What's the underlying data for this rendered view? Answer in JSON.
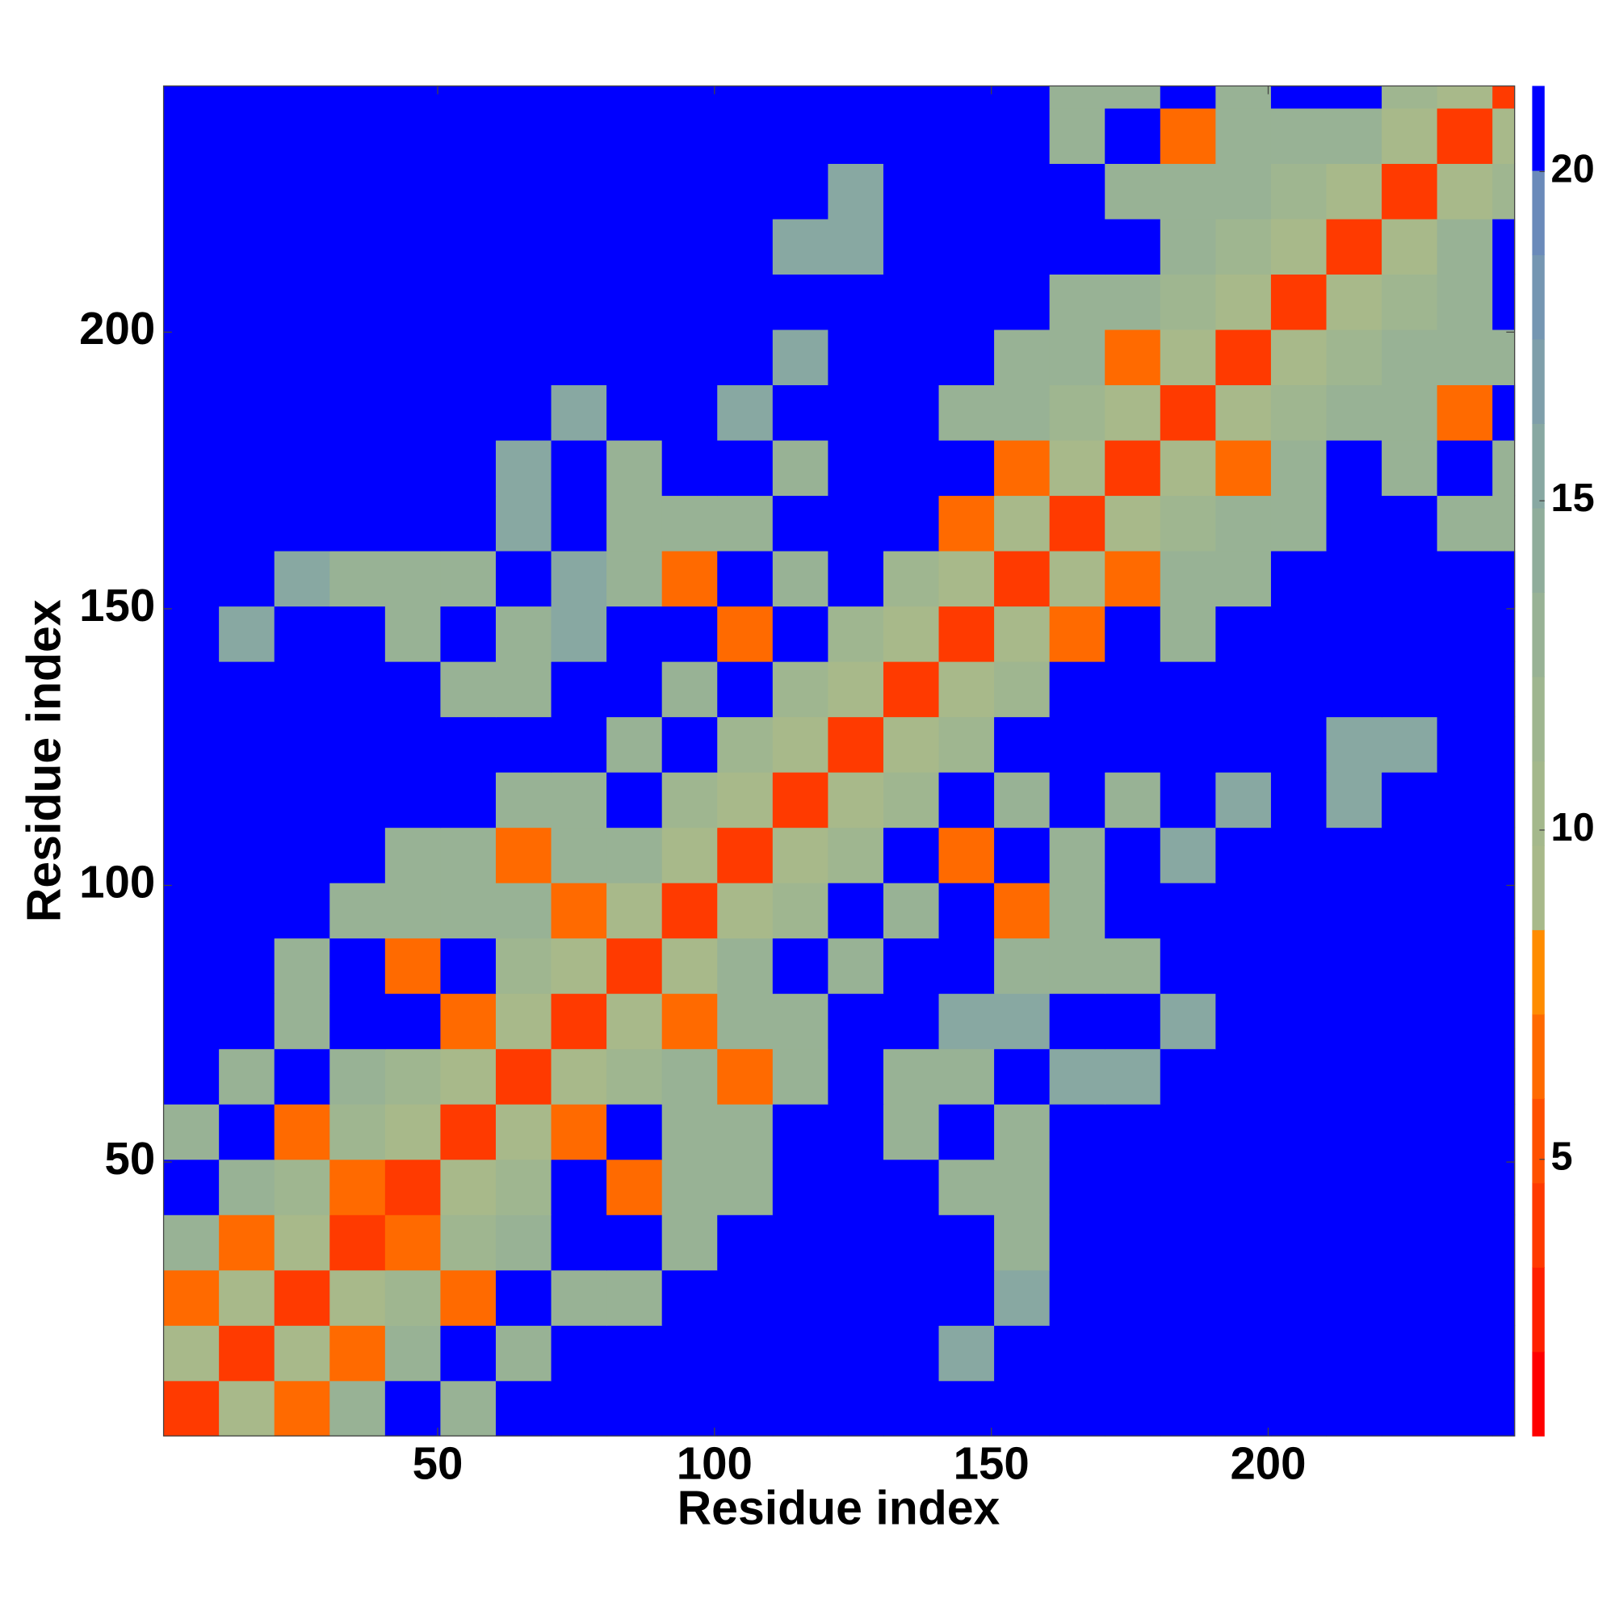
{
  "chart_data": {
    "type": "heatmap",
    "x_label": "Residue index",
    "y_label": "Residue index",
    "xlim": [
      0.5,
      244.5
    ],
    "ylim": [
      0.5,
      244.5
    ],
    "xticks": [
      50,
      100,
      150,
      200
    ],
    "yticks": [
      50,
      100,
      150,
      200
    ],
    "xbins": [
      0.5,
      10.5,
      20.5,
      30.5,
      40.5,
      50.5,
      60.5,
      70.5,
      80.5,
      90.5,
      100.5,
      110.5,
      120.5,
      130.5,
      140.5,
      150.5,
      160.5,
      170.5,
      180.5,
      190.5,
      200.5,
      210.5,
      220.5,
      230.5,
      240.5,
      244.5
    ],
    "ybins": [
      0.5,
      10.5,
      20.5,
      30.5,
      40.5,
      50.5,
      60.5,
      70.5,
      80.5,
      90.5,
      100.5,
      110.5,
      120.5,
      130.5,
      140.5,
      150.5,
      160.5,
      170.5,
      180.5,
      190.5,
      200.5,
      210.5,
      220.5,
      230.5,
      240.5,
      244.5
    ],
    "clim": [
      0.8,
      21.3
    ],
    "cticks": [
      5,
      10,
      15,
      20
    ],
    "colors": [
      "#ff0000",
      "#ff2000",
      "#ff3a00",
      "#ff5000",
      "#ff6a00",
      "#ff8c00",
      "#a8b98a",
      "#a4b88c",
      "#9fb690",
      "#98b295",
      "#90ad9b",
      "#88a8a2",
      "#7f9faa",
      "#7596b2",
      "#6a8aba",
      "#0000ff"
    ],
    "z": [
      [
        4,
        9,
        7,
        13,
        21,
        13,
        21,
        21,
        21,
        21,
        21,
        21,
        21,
        21,
        21,
        21,
        21,
        21,
        21,
        21,
        21,
        21,
        21,
        21,
        21
      ],
      [
        9,
        4,
        9,
        7,
        13,
        21,
        13,
        21,
        21,
        21,
        21,
        21,
        21,
        21,
        16,
        21,
        21,
        21,
        21,
        21,
        21,
        21,
        21,
        21,
        21
      ],
      [
        7,
        9,
        4,
        9,
        12,
        7,
        21,
        13,
        13,
        21,
        21,
        21,
        21,
        21,
        21,
        16,
        21,
        21,
        21,
        21,
        21,
        21,
        21,
        21,
        21
      ],
      [
        13,
        7,
        9,
        4,
        7,
        12,
        13,
        21,
        21,
        13,
        21,
        21,
        21,
        21,
        21,
        13,
        21,
        21,
        21,
        21,
        21,
        21,
        21,
        21,
        21
      ],
      [
        21,
        13,
        12,
        7,
        4,
        9,
        12,
        21,
        7,
        13,
        13,
        21,
        21,
        21,
        13,
        13,
        21,
        21,
        21,
        21,
        21,
        21,
        21,
        21,
        21
      ],
      [
        13,
        21,
        7,
        12,
        9,
        4,
        9,
        7,
        21,
        13,
        13,
        21,
        21,
        13,
        21,
        13,
        21,
        21,
        21,
        21,
        21,
        21,
        21,
        21,
        21
      ],
      [
        21,
        13,
        21,
        13,
        12,
        9,
        4,
        9,
        12,
        13,
        7,
        13,
        21,
        13,
        13,
        21,
        16,
        16,
        21,
        21,
        21,
        21,
        21,
        21,
        21
      ],
      [
        21,
        21,
        13,
        21,
        21,
        7,
        9,
        4,
        9,
        7,
        13,
        13,
        21,
        21,
        16,
        16,
        21,
        21,
        16,
        21,
        21,
        21,
        21,
        21,
        21
      ],
      [
        21,
        21,
        13,
        21,
        7,
        21,
        12,
        9,
        4,
        9,
        13,
        21,
        13,
        21,
        21,
        13,
        13,
        13,
        21,
        21,
        21,
        21,
        21,
        21,
        21
      ],
      [
        21,
        21,
        21,
        13,
        13,
        13,
        13,
        7,
        9,
        4,
        9,
        12,
        21,
        13,
        21,
        7,
        13,
        21,
        21,
        21,
        21,
        21,
        21,
        21,
        21
      ],
      [
        21,
        21,
        21,
        21,
        13,
        13,
        7,
        13,
        13,
        9,
        4,
        9,
        12,
        21,
        7,
        21,
        13,
        21,
        16,
        21,
        21,
        21,
        21,
        21,
        21
      ],
      [
        21,
        21,
        21,
        21,
        21,
        21,
        13,
        13,
        21,
        12,
        9,
        4,
        9,
        12,
        21,
        13,
        21,
        13,
        21,
        16,
        21,
        16,
        21,
        21,
        21
      ],
      [
        21,
        21,
        21,
        21,
        21,
        21,
        21,
        21,
        13,
        21,
        12,
        9,
        4,
        9,
        12,
        21,
        21,
        21,
        21,
        21,
        21,
        16,
        16,
        21,
        21
      ],
      [
        21,
        21,
        21,
        21,
        21,
        13,
        13,
        21,
        21,
        13,
        21,
        12,
        9,
        4,
        9,
        12,
        21,
        21,
        21,
        21,
        21,
        21,
        21,
        21,
        21
      ],
      [
        21,
        16,
        21,
        21,
        13,
        21,
        13,
        16,
        21,
        21,
        7,
        21,
        12,
        9,
        4,
        9,
        7,
        21,
        13,
        21,
        21,
        21,
        21,
        21,
        21
      ],
      [
        21,
        21,
        16,
        13,
        13,
        13,
        21,
        16,
        13,
        7,
        21,
        13,
        21,
        12,
        9,
        4,
        9,
        7,
        13,
        13,
        21,
        21,
        21,
        21,
        21
      ],
      [
        21,
        21,
        21,
        21,
        21,
        21,
        16,
        21,
        13,
        13,
        13,
        21,
        21,
        21,
        7,
        9,
        4,
        9,
        12,
        13,
        13,
        21,
        21,
        13,
        13
      ],
      [
        21,
        21,
        21,
        21,
        21,
        21,
        16,
        21,
        13,
        21,
        21,
        13,
        21,
        21,
        21,
        7,
        9,
        4,
        9,
        7,
        13,
        21,
        13,
        21,
        13
      ],
      [
        21,
        21,
        21,
        21,
        21,
        21,
        21,
        16,
        21,
        21,
        16,
        21,
        21,
        21,
        13,
        13,
        12,
        9,
        4,
        9,
        12,
        13,
        13,
        7,
        21
      ],
      [
        21,
        21,
        21,
        21,
        21,
        21,
        21,
        21,
        21,
        21,
        21,
        16,
        21,
        21,
        21,
        13,
        13,
        7,
        9,
        4,
        9,
        12,
        13,
        13,
        13
      ],
      [
        21,
        21,
        21,
        21,
        21,
        21,
        21,
        21,
        21,
        21,
        21,
        21,
        21,
        21,
        21,
        21,
        13,
        13,
        12,
        9,
        4,
        9,
        12,
        13,
        21
      ],
      [
        21,
        21,
        21,
        21,
        21,
        21,
        21,
        21,
        21,
        21,
        21,
        16,
        16,
        21,
        21,
        21,
        21,
        21,
        13,
        12,
        9,
        4,
        9,
        13,
        21
      ],
      [
        21,
        21,
        21,
        21,
        21,
        21,
        21,
        21,
        21,
        21,
        21,
        21,
        16,
        21,
        21,
        21,
        21,
        13,
        13,
        13,
        12,
        9,
        4,
        9,
        12
      ],
      [
        21,
        21,
        21,
        21,
        21,
        21,
        21,
        21,
        21,
        21,
        21,
        21,
        21,
        21,
        21,
        21,
        13,
        21,
        7,
        13,
        13,
        13,
        9,
        4,
        9
      ],
      [
        21,
        21,
        21,
        21,
        21,
        21,
        21,
        21,
        21,
        21,
        21,
        21,
        21,
        21,
        21,
        21,
        13,
        13,
        21,
        13,
        21,
        21,
        12,
        9,
        4
      ]
    ]
  }
}
